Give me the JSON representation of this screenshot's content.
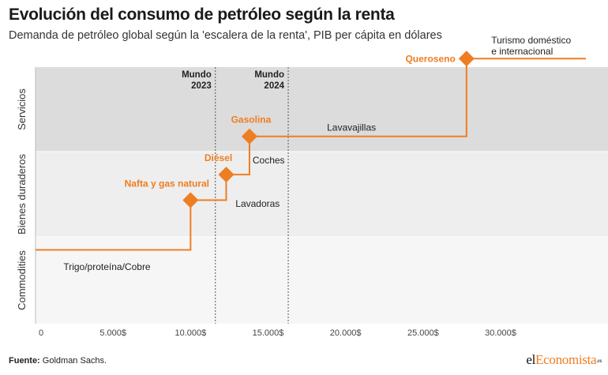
{
  "header": {
    "title": "Evolución del consumo de petróleo según la renta",
    "subtitle": "Demanda de petróleo global según la 'escalera de la renta', PIB per cápita en dólares"
  },
  "footer": {
    "source_label": "Fuente:",
    "source_text": " Goldman Sachs.",
    "logo_pre": "el",
    "logo_accent": "Economista",
    "logo_tld": ".es"
  },
  "chart_data": {
    "type": "line",
    "line_style": "step",
    "x_ticks": [
      0,
      5000,
      10000,
      15000,
      20000,
      25000,
      30000
    ],
    "x_tick_labels": [
      "0",
      "5.000$",
      "10.000$",
      "15.000$",
      "20.000$",
      "25.000$",
      "30.000$"
    ],
    "xlim": [
      0,
      35500
    ],
    "bands": [
      {
        "name": "Servicios",
        "level": 3
      },
      {
        "name": "Bienes duraderos",
        "level": 2
      },
      {
        "name": "Commodities",
        "level": 1
      }
    ],
    "reference_lines": [
      {
        "label1": "Mundo",
        "label2": "2023",
        "x": 11600
      },
      {
        "label1": "Mundo",
        "label2": "2024",
        "x": 16300
      }
    ],
    "steps": [
      {
        "x": 0,
        "y": 1.35
      },
      {
        "x": 10000,
        "y": 1.35
      },
      {
        "x": 10000,
        "y": 1.93
      },
      {
        "x": 12300,
        "y": 1.93
      },
      {
        "x": 12300,
        "y": 2.23
      },
      {
        "x": 13800,
        "y": 2.23
      },
      {
        "x": 13800,
        "y": 2.68
      },
      {
        "x": 27800,
        "y": 2.68
      },
      {
        "x": 27800,
        "y": 3.6
      },
      {
        "x": 35500,
        "y": 3.6
      }
    ],
    "markers": [
      {
        "label": "Nafta y gas natural",
        "x": 10000,
        "y": 1.93
      },
      {
        "label": "Diésel",
        "x": 12300,
        "y": 2.23
      },
      {
        "label": "Gasolina",
        "x": 13800,
        "y": 2.68
      },
      {
        "label": "Queroseno",
        "x": 27800,
        "y": 3.6
      }
    ],
    "annotations": [
      {
        "line1": "Trigo/proteína/Cobre",
        "line2": "",
        "x": 1800,
        "y": 1.12
      },
      {
        "line1": "Lavadoras",
        "line2": "",
        "x": 12900,
        "y": 1.85
      },
      {
        "line1": "Coches",
        "line2": "",
        "x": 14000,
        "y": 2.36
      },
      {
        "line1": "Lavavajillas",
        "line2": "",
        "x": 18800,
        "y": 2.75
      },
      {
        "line1": "Turismo doméstico",
        "line2": "e internacional",
        "x": 29400,
        "y": 3.78
      }
    ],
    "colors": {
      "line": "#ef7d22",
      "band_services": "#dcdcdc",
      "band_durables": "#eeeeee",
      "band_commodities": "#f6f6f6"
    }
  }
}
